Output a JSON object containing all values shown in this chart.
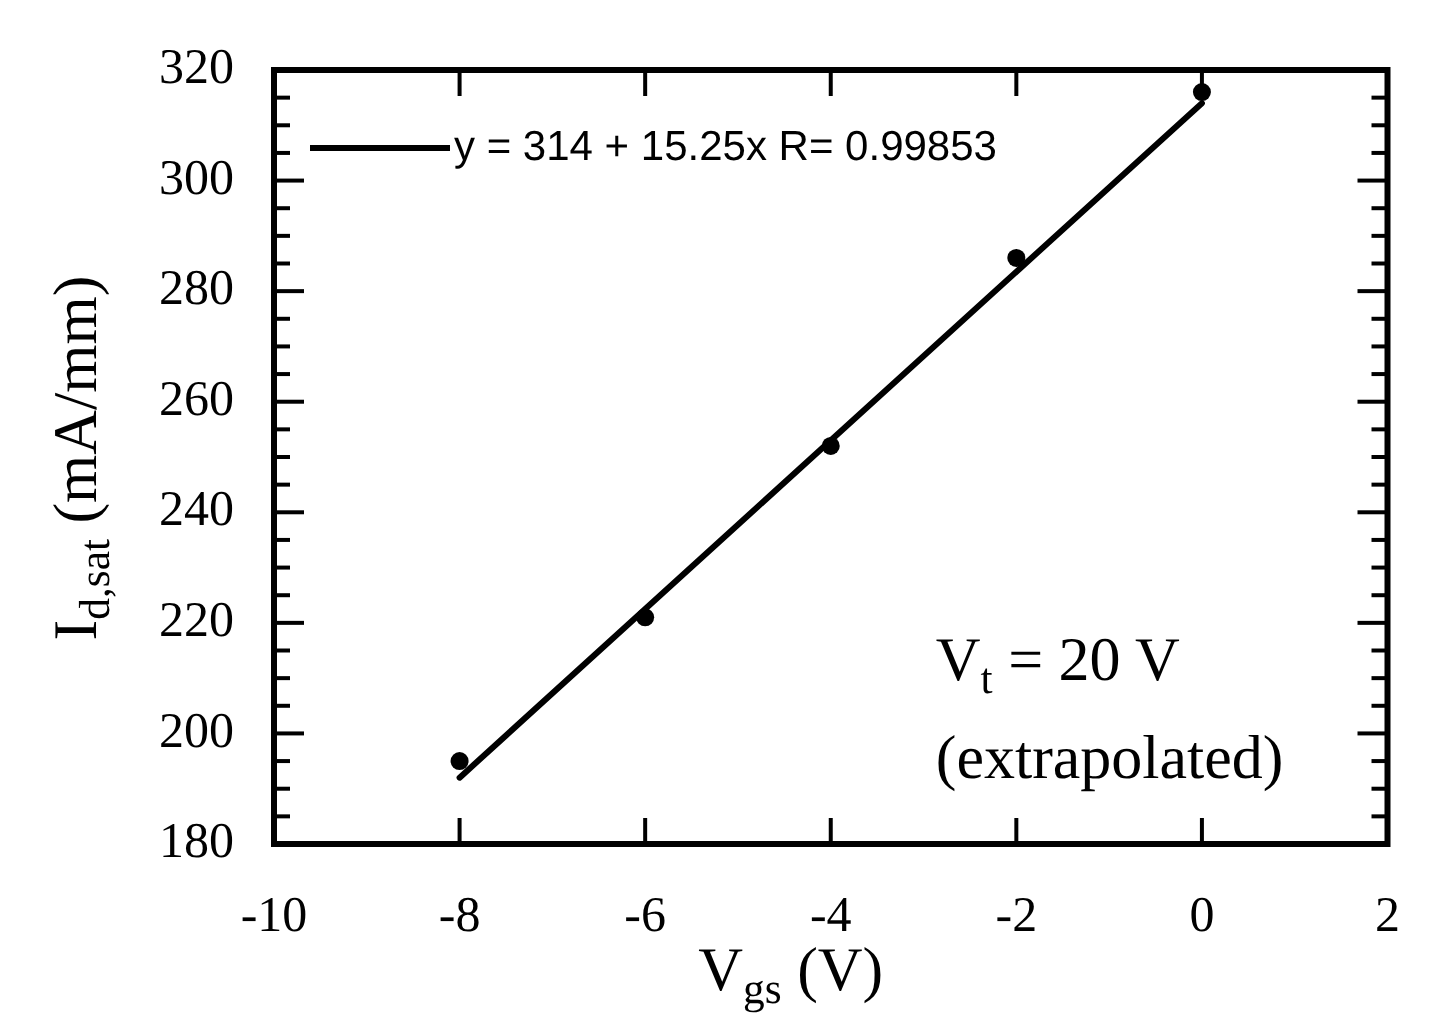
{
  "chart_data": {
    "type": "scatter",
    "xlabel": "V$_{gs}$ (V)",
    "ylabel": "I$_{d,sat}$ (mA/mm)",
    "xlim": [
      -10,
      2
    ],
    "xticks": [
      -10,
      -8,
      -6,
      -4,
      -2,
      0,
      2
    ],
    "ylim": [
      180,
      320
    ],
    "yticks": [
      180,
      {
        "value": 185,
        "label": null
      },
      {
        "value": 190,
        "label": null
      },
      {
        "value": 195,
        "label": null
      },
      200,
      {
        "value": 205,
        "label": null
      },
      {
        "value": 210,
        "label": null
      },
      {
        "value": 215,
        "label": null
      },
      220,
      {
        "value": 225,
        "label": null
      },
      {
        "value": 230,
        "label": null
      },
      {
        "value": 235,
        "label": null
      },
      240,
      {
        "value": 245,
        "label": null
      },
      {
        "value": 250,
        "label": null
      },
      {
        "value": 255,
        "label": null
      },
      260,
      {
        "value": 265,
        "label": null
      },
      {
        "value": 270,
        "label": null
      },
      {
        "value": 275,
        "label": null
      },
      280,
      {
        "value": 285,
        "label": null
      },
      {
        "value": 290,
        "label": null
      },
      {
        "value": 295,
        "label": null
      },
      300,
      {
        "value": 305,
        "label": null
      },
      {
        "value": 310,
        "label": null
      },
      {
        "value": 315,
        "label": null
      },
      320
    ],
    "marker": "circle",
    "legend": "top left",
    "annotations": [
      "V$_{t}$ = 20 V\n(extrapolated)"
    ],
    "series": [
      {
        "color": "#000000",
        "x": [
          -8,
          -6,
          -4,
          -2,
          0
        ],
        "values": [
          195,
          221,
          252,
          286,
          316
        ]
      },
      {
        "name": "y = 314 + 15.25x R= 0.99853",
        "type": "line",
        "marker": "none",
        "color": "#000000",
        "x": [
          -8,
          0
        ],
        "values": [
          192,
          314
        ]
      }
    ]
  }
}
